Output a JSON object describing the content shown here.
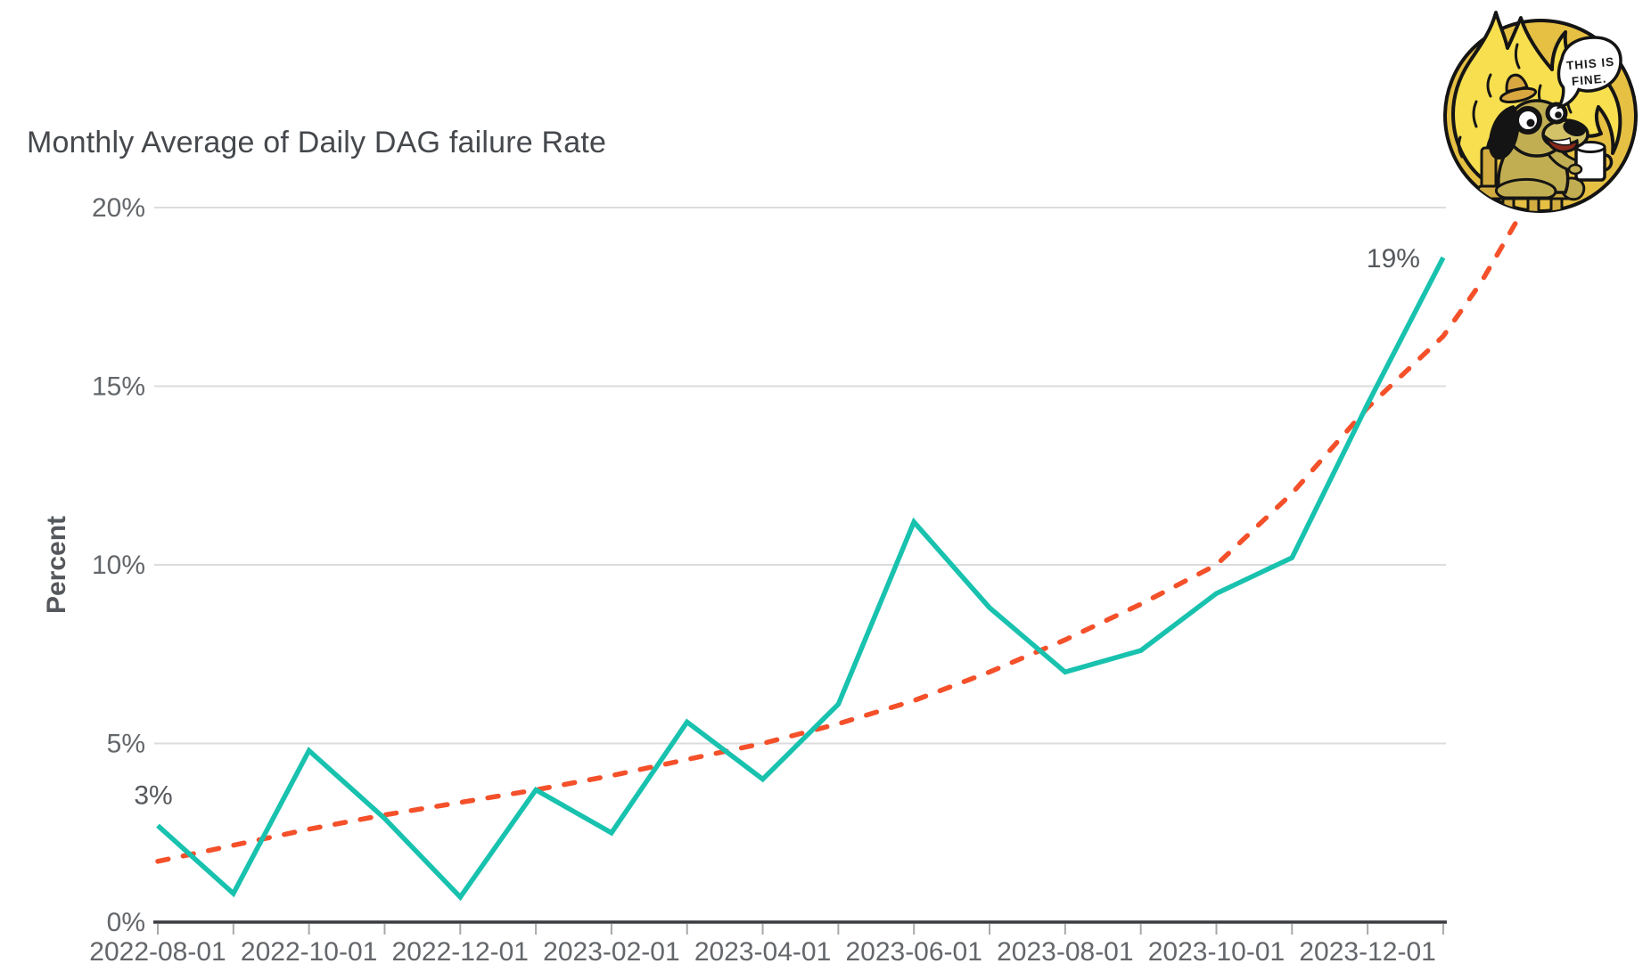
{
  "chart_data": {
    "type": "line",
    "title": "Monthly Average of Daily DAG failure Rate",
    "ylabel": "Percent",
    "xlabel": "",
    "ylim": [
      0,
      20
    ],
    "grid": "horizontal",
    "legend": "none",
    "x": [
      "2022-08-01",
      "2022-09-01",
      "2022-10-01",
      "2022-11-01",
      "2022-12-01",
      "2023-01-01",
      "2023-02-01",
      "2023-03-01",
      "2023-04-01",
      "2023-05-01",
      "2023-06-01",
      "2023-07-01",
      "2023-08-01",
      "2023-09-01",
      "2023-10-01",
      "2023-11-01",
      "2023-12-01",
      "2024-01-01"
    ],
    "x_tick_labels": [
      "2022-08-01",
      "2022-10-01",
      "2022-12-01",
      "2023-02-01",
      "2023-04-01",
      "2023-06-01",
      "2023-08-01",
      "2023-10-01",
      "2023-12-01"
    ],
    "y_tick_values": [
      0,
      5,
      10,
      15,
      20
    ],
    "y_tick_labels": [
      "0%",
      "5%",
      "10%",
      "15%",
      "20%"
    ],
    "series": [
      {
        "name": "monthly-avg-daily-dag-failure-rate",
        "style": "solid",
        "color": "#18C2AE",
        "values": [
          2.7,
          0.8,
          4.8,
          2.9,
          0.7,
          3.7,
          2.5,
          5.6,
          4.0,
          6.1,
          11.2,
          8.8,
          7.0,
          7.6,
          9.2,
          10.2,
          14.5,
          18.6
        ]
      },
      {
        "name": "trend-extrapolation",
        "style": "dashed",
        "color": "#F4502A",
        "values": [
          1.7,
          2.15,
          2.6,
          3.0,
          3.35,
          3.7,
          4.1,
          4.55,
          5.0,
          5.55,
          6.2,
          7.0,
          7.9,
          8.9,
          10.0,
          12.0,
          14.4,
          16.4
        ],
        "extra_points": [
          {
            "t": 17.5,
            "v": 17.9
          },
          {
            "t": 18.02,
            "v": 19.8
          }
        ]
      }
    ],
    "annotations": [
      {
        "text": "3%",
        "series": 0,
        "index": 0,
        "placement": "above"
      },
      {
        "text": "19%",
        "series": 0,
        "index": 17,
        "placement": "left"
      }
    ]
  },
  "meme": {
    "name": "this-is-fine-dog",
    "speech_line1": "THIS IS",
    "speech_line2": "FINE."
  },
  "colors": {
    "line_main": "#18C2AE",
    "line_trend": "#F4502A",
    "gridline": "#dcdcdc",
    "axis": "#3a3c40",
    "tick": "#a8a8a8",
    "text": "#63666a",
    "title": "#45484c"
  }
}
